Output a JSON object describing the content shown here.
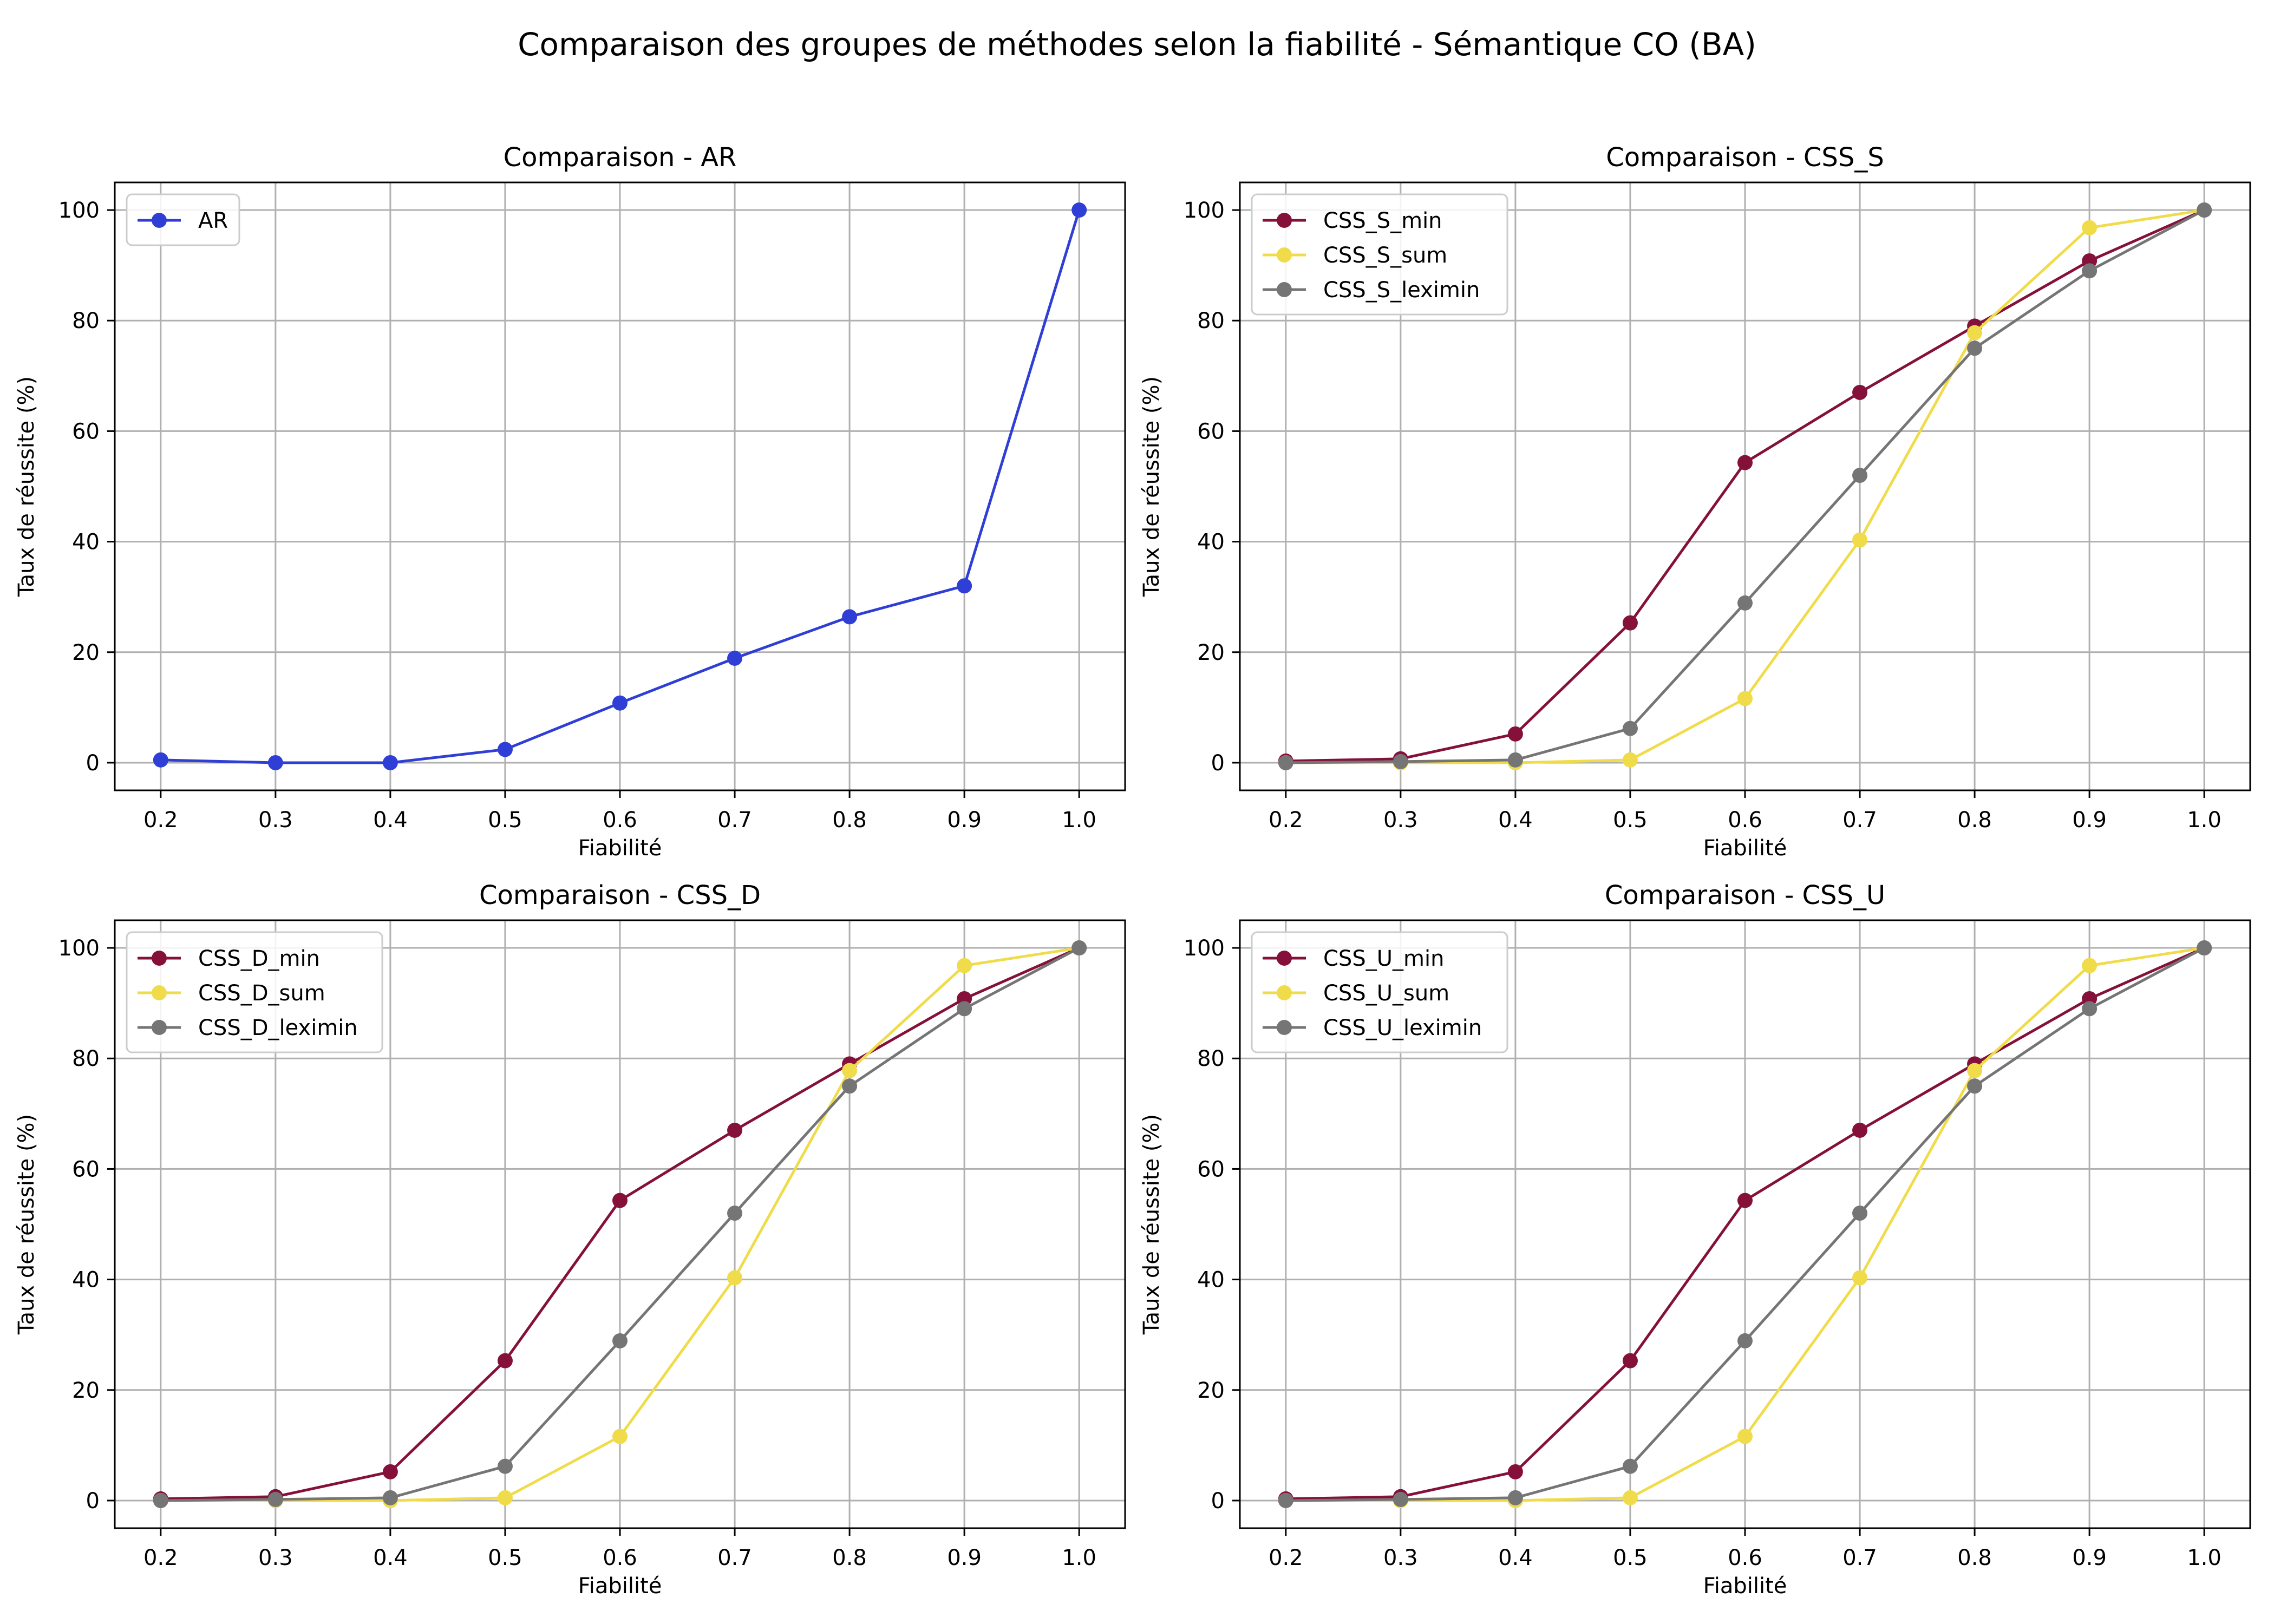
{
  "figure": {
    "suptitle": "Comparaison des groupes de méthodes selon la fiabilité - Sémantique CO (BA)"
  },
  "chart_data": [
    {
      "type": "line",
      "title": "Comparaison - AR",
      "xlabel": "Fiabilité",
      "ylabel": "Taux de réussite (%)",
      "x": [
        0.2,
        0.3,
        0.4,
        0.5,
        0.6,
        0.7,
        0.8,
        0.9,
        1.0
      ],
      "xticks": [
        "0.2",
        "0.3",
        "0.4",
        "0.5",
        "0.6",
        "0.7",
        "0.8",
        "0.9",
        "1.0"
      ],
      "yticks": [
        "0",
        "20",
        "40",
        "60",
        "80",
        "100"
      ],
      "xlim": [
        0.16,
        1.04
      ],
      "ylim": [
        -5,
        105
      ],
      "grid": true,
      "legend_position": "upper left",
      "series": [
        {
          "name": "AR",
          "color": "#2f3fd6",
          "values": [
            0.5,
            0.0,
            0.0,
            2.4,
            10.8,
            18.9,
            26.4,
            32.0,
            100.0
          ]
        }
      ]
    },
    {
      "type": "line",
      "title": "Comparaison - CSS_S",
      "xlabel": "Fiabilité",
      "ylabel": "Taux de réussite (%)",
      "x": [
        0.2,
        0.3,
        0.4,
        0.5,
        0.6,
        0.7,
        0.8,
        0.9,
        1.0
      ],
      "xticks": [
        "0.2",
        "0.3",
        "0.4",
        "0.5",
        "0.6",
        "0.7",
        "0.8",
        "0.9",
        "1.0"
      ],
      "yticks": [
        "0",
        "20",
        "40",
        "60",
        "80",
        "100"
      ],
      "xlim": [
        0.16,
        1.04
      ],
      "ylim": [
        -5,
        105
      ],
      "grid": true,
      "legend_position": "upper left",
      "series": [
        {
          "name": "CSS_S_min",
          "color": "#85103a",
          "values": [
            0.3,
            0.7,
            5.2,
            25.3,
            54.3,
            67.0,
            79.0,
            90.8,
            100.0
          ]
        },
        {
          "name": "CSS_S_sum",
          "color": "#f0dc4a",
          "values": [
            0.0,
            0.0,
            0.0,
            0.5,
            11.6,
            40.3,
            77.8,
            96.8,
            100.0
          ]
        },
        {
          "name": "CSS_S_leximin",
          "color": "#757575",
          "values": [
            0.0,
            0.2,
            0.5,
            6.2,
            28.9,
            52.0,
            75.0,
            89.0,
            100.0
          ]
        }
      ]
    },
    {
      "type": "line",
      "title": "Comparaison - CSS_D",
      "xlabel": "Fiabilité",
      "ylabel": "Taux de réussite (%)",
      "x": [
        0.2,
        0.3,
        0.4,
        0.5,
        0.6,
        0.7,
        0.8,
        0.9,
        1.0
      ],
      "xticks": [
        "0.2",
        "0.3",
        "0.4",
        "0.5",
        "0.6",
        "0.7",
        "0.8",
        "0.9",
        "1.0"
      ],
      "yticks": [
        "0",
        "20",
        "40",
        "60",
        "80",
        "100"
      ],
      "xlim": [
        0.16,
        1.04
      ],
      "ylim": [
        -5,
        105
      ],
      "grid": true,
      "legend_position": "upper left",
      "series": [
        {
          "name": "CSS_D_min",
          "color": "#85103a",
          "values": [
            0.3,
            0.7,
            5.2,
            25.3,
            54.3,
            67.0,
            79.0,
            90.8,
            100.0
          ]
        },
        {
          "name": "CSS_D_sum",
          "color": "#f0dc4a",
          "values": [
            0.0,
            0.0,
            0.0,
            0.5,
            11.6,
            40.3,
            77.8,
            96.8,
            100.0
          ]
        },
        {
          "name": "CSS_D_leximin",
          "color": "#757575",
          "values": [
            0.0,
            0.2,
            0.5,
            6.2,
            28.9,
            52.0,
            75.0,
            89.0,
            100.0
          ]
        }
      ]
    },
    {
      "type": "line",
      "title": "Comparaison - CSS_U",
      "xlabel": "Fiabilité",
      "ylabel": "Taux de réussite (%)",
      "x": [
        0.2,
        0.3,
        0.4,
        0.5,
        0.6,
        0.7,
        0.8,
        0.9,
        1.0
      ],
      "xticks": [
        "0.2",
        "0.3",
        "0.4",
        "0.5",
        "0.6",
        "0.7",
        "0.8",
        "0.9",
        "1.0"
      ],
      "yticks": [
        "0",
        "20",
        "40",
        "60",
        "80",
        "100"
      ],
      "xlim": [
        0.16,
        1.04
      ],
      "ylim": [
        -5,
        105
      ],
      "grid": true,
      "legend_position": "upper left",
      "series": [
        {
          "name": "CSS_U_min",
          "color": "#85103a",
          "values": [
            0.3,
            0.7,
            5.2,
            25.3,
            54.3,
            67.0,
            79.0,
            90.8,
            100.0
          ]
        },
        {
          "name": "CSS_U_sum",
          "color": "#f0dc4a",
          "values": [
            0.0,
            0.0,
            0.0,
            0.5,
            11.6,
            40.3,
            77.8,
            96.8,
            100.0
          ]
        },
        {
          "name": "CSS_U_leximin",
          "color": "#757575",
          "values": [
            0.0,
            0.2,
            0.5,
            6.2,
            28.9,
            52.0,
            75.0,
            89.0,
            100.0
          ]
        }
      ]
    }
  ]
}
